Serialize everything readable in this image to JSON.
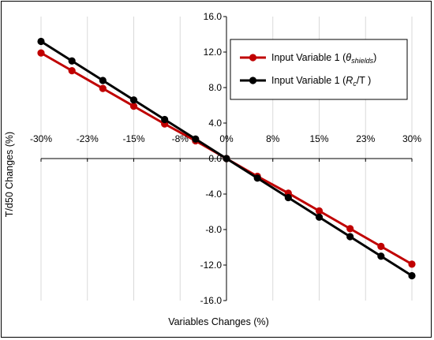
{
  "chart_data": {
    "type": "line",
    "xlabel": "Variables Changes (%)",
    "ylabel": "T/d50 Changes (%)",
    "x_tick_labels": [
      "-30%",
      "-23%",
      "-15%",
      "-8%",
      "0%",
      "8%",
      "15%",
      "23%",
      "30%"
    ],
    "x_tick_values": [
      -30,
      -22.5,
      -15,
      -7.5,
      0,
      7.5,
      15,
      22.5,
      30
    ],
    "y_tick_labels": [
      "16.0",
      "12.0",
      "8.0",
      "4.0",
      "0.0",
      "-4.0",
      "-8.0",
      "-12.0",
      "-16.0"
    ],
    "y_tick_values": [
      16,
      12,
      8,
      4,
      0,
      -4,
      -8,
      -12,
      -16
    ],
    "xlim": [
      -30,
      30
    ],
    "ylim": [
      -16,
      16
    ],
    "grid": "vertical",
    "legend_position": "top-right",
    "series": [
      {
        "name": "Input Variable 1 (θshields)",
        "name_main": "Input Variable 1 (",
        "name_symbol": "θ",
        "name_sub": "shields",
        "name_end": ")",
        "color": "#c00000",
        "x": [
          -30,
          -25,
          -20,
          -15,
          -10,
          -5,
          0,
          5,
          10,
          15,
          20,
          25,
          30
        ],
        "y": [
          11.9,
          9.9,
          7.9,
          5.9,
          3.9,
          2.0,
          0.0,
          -2.0,
          -3.9,
          -5.9,
          -7.9,
          -9.9,
          -11.9
        ]
      },
      {
        "name": "Input Variable 1 (Rc/T)",
        "name_main": "Input Variable 1 (",
        "name_symbol": "R",
        "name_sub": "c",
        "name_end": "/T )",
        "color": "#000000",
        "x": [
          -30,
          -25,
          -20,
          -15,
          -10,
          -5,
          0,
          5,
          10,
          15,
          20,
          25,
          30
        ],
        "y": [
          13.2,
          11.0,
          8.8,
          6.6,
          4.4,
          2.2,
          0.0,
          -2.2,
          -4.4,
          -6.6,
          -8.8,
          -11.0,
          -13.2
        ]
      }
    ]
  }
}
